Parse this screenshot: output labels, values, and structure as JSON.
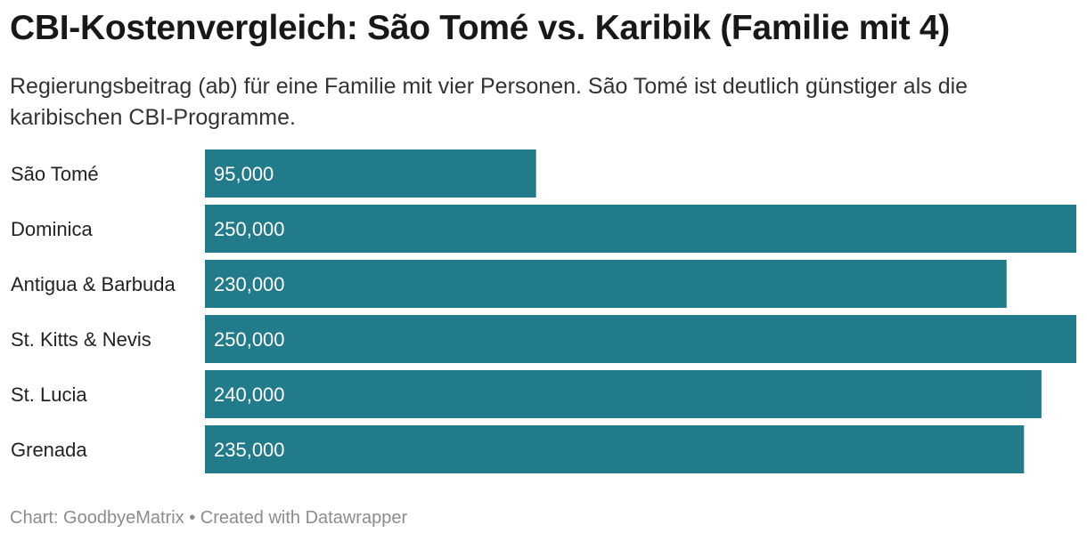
{
  "chart_data": {
    "type": "bar",
    "orientation": "horizontal",
    "title": "CBI-Kostenvergleich: São Tomé vs. Karibik (Familie mit 4)",
    "subtitle": "Regierungsbeitrag (ab) für eine Familie mit vier Personen. São Tomé ist deutlich günstiger als die karibischen CBI-Programme.",
    "categories": [
      "São Tomé",
      "Dominica",
      "Antigua & Barbuda",
      "St. Kitts & Nevis",
      "St. Lucia",
      "Grenada"
    ],
    "values": [
      95000,
      250000,
      230000,
      250000,
      240000,
      235000
    ],
    "value_labels": [
      "95,000",
      "250,000",
      "230,000",
      "250,000",
      "240,000",
      "235,000"
    ],
    "xlim": [
      0,
      250000
    ],
    "bar_color": "#217b8b",
    "grid": false,
    "legend": "none"
  },
  "footer": {
    "source": "Chart: GoodbyeMatrix",
    "separator": "•",
    "credit": "Created with Datawrapper"
  }
}
